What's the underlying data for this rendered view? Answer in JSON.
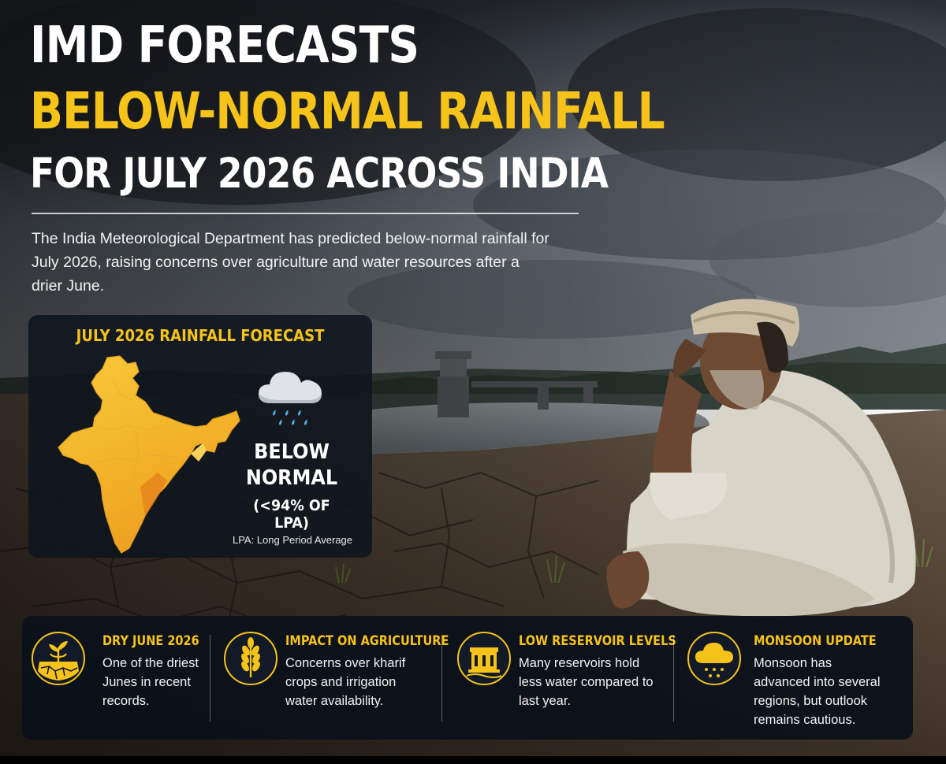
{
  "headline": {
    "line1": "IMD FORECASTS",
    "line2": "BELOW-NORMAL RAINFALL",
    "line3": "FOR JULY 2026 ACROSS INDIA"
  },
  "summary": "The India Meteorological Department has predicted below-normal rainfall for July 2026, raising concerns over agriculture and water resources after a drier June.",
  "forecast_card": {
    "title": "JULY 2026 RAINFALL FORECAST",
    "status_line1": "BELOW",
    "status_line2": "NORMAL",
    "threshold": "(<94% OF LPA)",
    "note": "LPA: Long Period Average",
    "map_icon": "india-map-icon",
    "weather_icon": "cloud-rain-icon"
  },
  "info_items": [
    {
      "title": "DRY JUNE 2026",
      "text": "One of the driest Junes in recent records.",
      "icon": "dry-soil-plant-icon"
    },
    {
      "title": "IMPACT ON AGRICULTURE",
      "text": "Concerns over kharif crops and irrigation water availability.",
      "icon": "wheat-icon"
    },
    {
      "title": "LOW RESERVOIR LEVELS",
      "text": "Many reservoirs hold less water compared to last year.",
      "icon": "reservoir-dam-icon"
    },
    {
      "title": "MONSOON UPDATE",
      "text": "Monsoon has advanced into several regions, but outlook remains cautious.",
      "icon": "cloud-rain-icon"
    }
  ],
  "colors": {
    "accent": "#f6c31a",
    "panel": "#0e141e",
    "text": "#ffffff"
  }
}
